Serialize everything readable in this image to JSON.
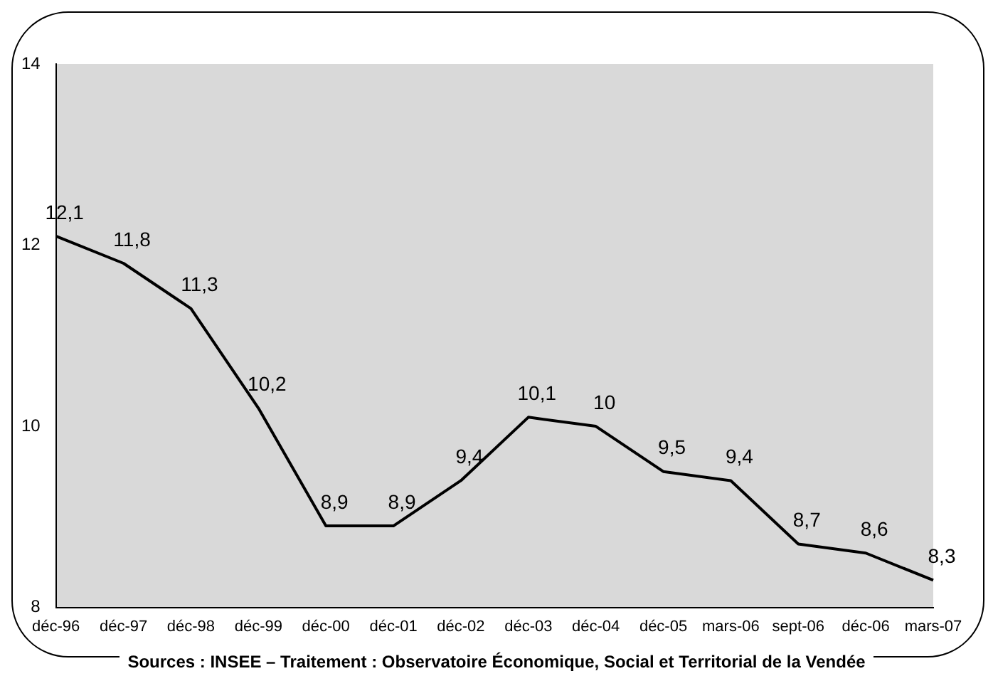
{
  "chart_data": {
    "type": "line",
    "categories": [
      "déc-96",
      "déc-97",
      "déc-98",
      "déc-99",
      "déc-00",
      "déc-01",
      "déc-02",
      "déc-03",
      "déc-04",
      "déc-05",
      "mars-06",
      "sept-06",
      "déc-06",
      "mars-07"
    ],
    "series": [
      {
        "color": "#000000",
        "values": [
          12.1,
          11.8,
          11.3,
          10.2,
          8.9,
          8.9,
          9.4,
          10.1,
          10,
          9.5,
          9.4,
          8.7,
          8.6,
          8.3
        ]
      }
    ],
    "value_labels": [
      "12,1",
      "11,8",
      "11,3",
      "10,2",
      "8,9",
      "8,9",
      "9,4",
      "10,1",
      "10",
      "9,5",
      "9,4",
      "8,7",
      "8,6",
      "8,3"
    ],
    "ylim": [
      8,
      14
    ],
    "yticks": [
      8,
      10,
      12,
      14
    ],
    "grid": false,
    "legend": false,
    "marker": "none",
    "line_style": "solid",
    "annotations": [
      "Sources : INSEE – Traitement : Observatoire Économique, Social et Territorial de la Vendée"
    ]
  }
}
